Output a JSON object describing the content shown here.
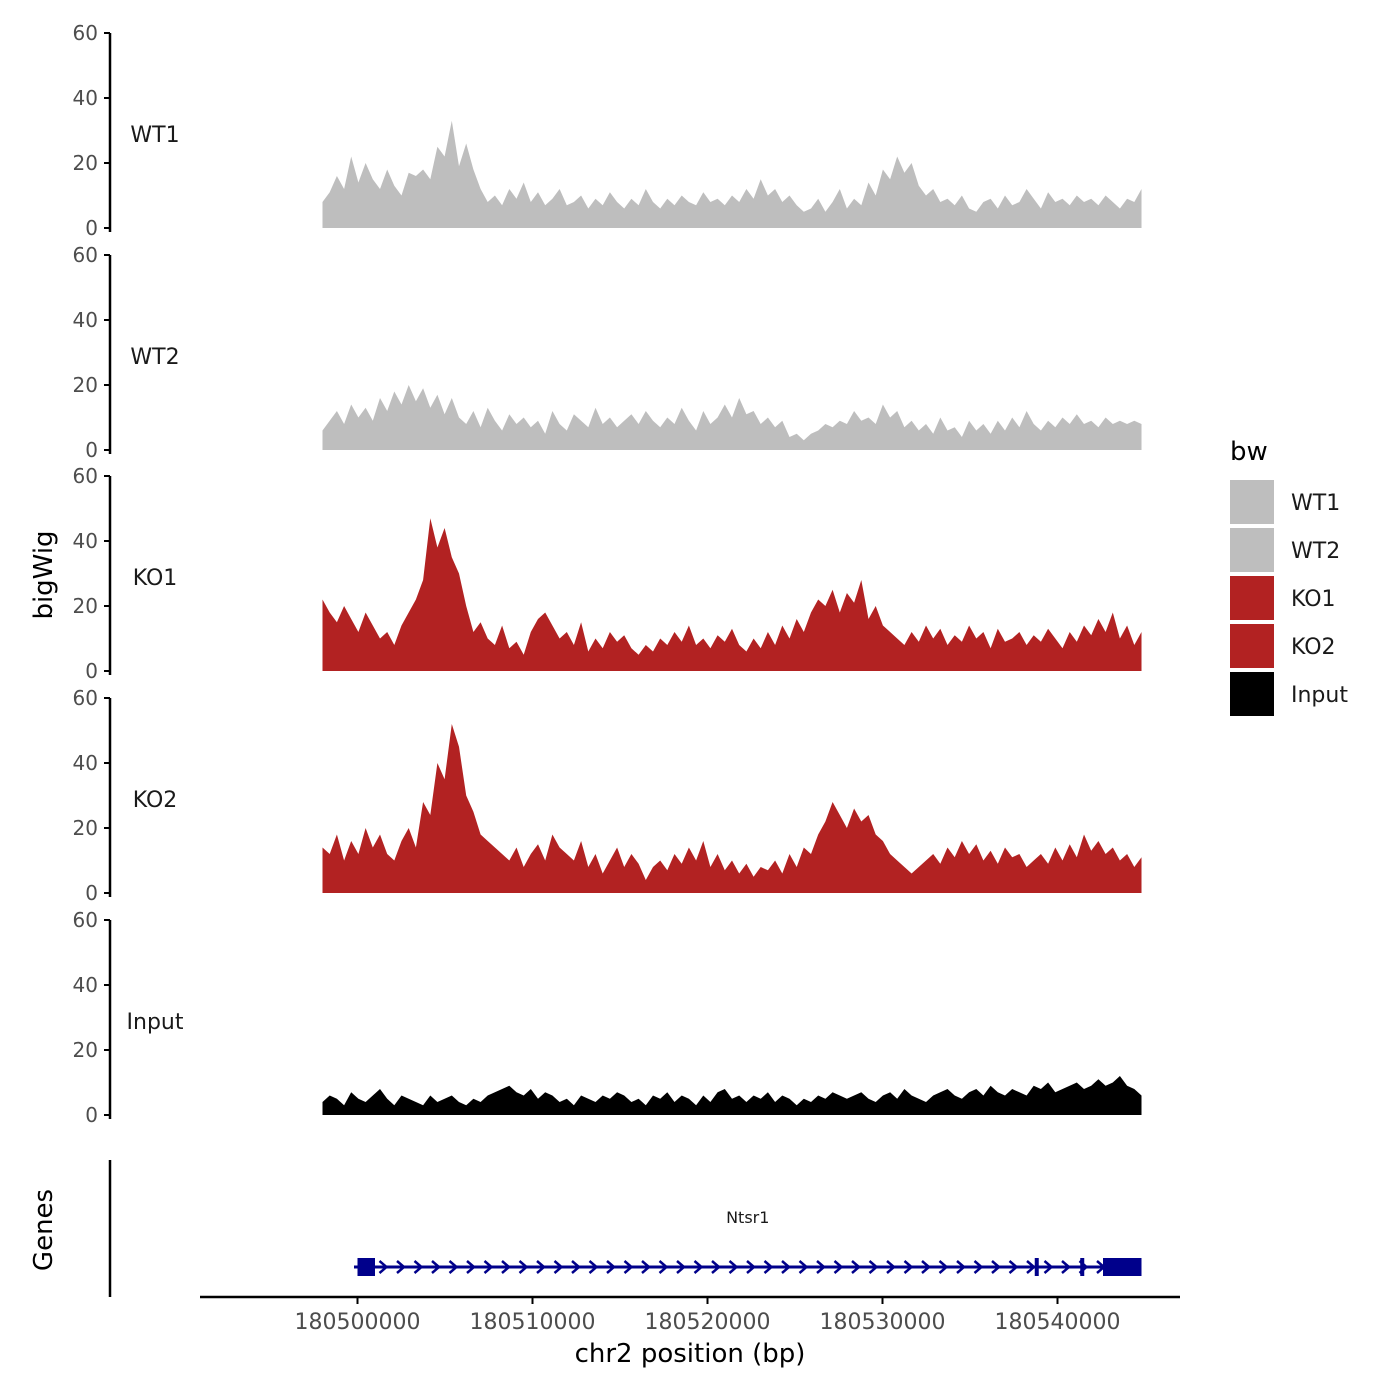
{
  "chart_data": {
    "type": "area",
    "title": "",
    "ylabel": "bigWig",
    "xlabel": "chr2 position (bp)",
    "ylim": [
      0,
      60
    ],
    "yticks": [
      0,
      20,
      40,
      60
    ],
    "xlim": [
      180491000,
      180547000
    ],
    "xticks": [
      180500000,
      180510000,
      180520000,
      180530000,
      180540000
    ],
    "x_start": 180498000,
    "x_end": 180544800,
    "legend": {
      "title": "bw",
      "placement": "right",
      "entries": [
        {
          "label": "WT1",
          "color": "#bebebe"
        },
        {
          "label": "WT2",
          "color": "#bebebe"
        },
        {
          "label": "KO1",
          "color": "#b22222"
        },
        {
          "label": "KO2",
          "color": "#b22222"
        },
        {
          "label": "Input",
          "color": "#000000"
        }
      ]
    },
    "series": [
      {
        "name": "WT1",
        "color": "#bebebe",
        "values": [
          8,
          11,
          16,
          12,
          22,
          14,
          20,
          15,
          12,
          18,
          13,
          10,
          17,
          16,
          18,
          15,
          25,
          22,
          33,
          19,
          26,
          18,
          12,
          8,
          10,
          7,
          12,
          9,
          14,
          8,
          11,
          7,
          9,
          12,
          7,
          8,
          10,
          6,
          9,
          7,
          11,
          8,
          6,
          9,
          7,
          12,
          8,
          6,
          9,
          7,
          10,
          8,
          7,
          11,
          8,
          9,
          7,
          10,
          8,
          12,
          9,
          15,
          10,
          12,
          8,
          10,
          7,
          5,
          6,
          9,
          5,
          8,
          12,
          6,
          9,
          7,
          14,
          10,
          18,
          15,
          22,
          17,
          20,
          13,
          10,
          12,
          8,
          9,
          7,
          10,
          6,
          5,
          8,
          9,
          6,
          10,
          7,
          8,
          12,
          9,
          6,
          11,
          8,
          9,
          7,
          10,
          8,
          9,
          7,
          10,
          8,
          6,
          9,
          8,
          12
        ]
      },
      {
        "name": "WT2",
        "color": "#bebebe",
        "values": [
          6,
          9,
          12,
          8,
          14,
          10,
          13,
          9,
          16,
          12,
          18,
          14,
          20,
          15,
          19,
          13,
          17,
          11,
          16,
          10,
          8,
          12,
          7,
          13,
          9,
          6,
          11,
          8,
          10,
          7,
          9,
          5,
          12,
          8,
          6,
          11,
          9,
          7,
          13,
          8,
          10,
          7,
          9,
          11,
          8,
          12,
          9,
          7,
          10,
          8,
          13,
          9,
          6,
          12,
          8,
          10,
          14,
          10,
          16,
          11,
          12,
          8,
          10,
          7,
          9,
          4,
          5,
          3,
          5,
          6,
          8,
          7,
          9,
          8,
          12,
          9,
          10,
          8,
          14,
          10,
          12,
          7,
          9,
          6,
          8,
          5,
          10,
          6,
          7,
          4,
          9,
          6,
          8,
          5,
          9,
          6,
          10,
          7,
          12,
          8,
          6,
          9,
          7,
          10,
          8,
          11,
          8,
          9,
          7,
          10,
          8,
          9,
          8,
          9,
          8
        ]
      },
      {
        "name": "KO1",
        "color": "#b22222",
        "values": [
          22,
          18,
          15,
          20,
          16,
          12,
          18,
          14,
          10,
          12,
          8,
          14,
          18,
          22,
          28,
          47,
          38,
          44,
          35,
          30,
          20,
          12,
          15,
          10,
          8,
          14,
          7,
          9,
          5,
          12,
          16,
          18,
          14,
          10,
          12,
          8,
          15,
          6,
          10,
          7,
          12,
          9,
          11,
          7,
          5,
          8,
          6,
          10,
          8,
          12,
          9,
          14,
          8,
          10,
          7,
          11,
          9,
          13,
          8,
          6,
          10,
          7,
          12,
          8,
          14,
          10,
          16,
          12,
          18,
          22,
          20,
          25,
          18,
          24,
          21,
          28,
          16,
          20,
          14,
          12,
          10,
          8,
          12,
          9,
          14,
          10,
          13,
          8,
          11,
          9,
          14,
          10,
          12,
          7,
          13,
          9,
          10,
          12,
          8,
          11,
          9,
          13,
          10,
          7,
          12,
          9,
          14,
          11,
          16,
          12,
          18,
          10,
          14,
          8,
          12
        ]
      },
      {
        "name": "KO2",
        "color": "#b22222",
        "values": [
          14,
          12,
          18,
          10,
          16,
          12,
          20,
          14,
          18,
          12,
          10,
          16,
          20,
          14,
          28,
          24,
          40,
          35,
          52,
          45,
          30,
          25,
          18,
          16,
          14,
          12,
          10,
          14,
          8,
          12,
          15,
          10,
          18,
          14,
          12,
          10,
          16,
          8,
          12,
          6,
          10,
          14,
          8,
          12,
          9,
          4,
          8,
          10,
          7,
          12,
          9,
          14,
          10,
          16,
          8,
          12,
          7,
          10,
          6,
          9,
          5,
          8,
          7,
          10,
          6,
          12,
          8,
          14,
          12,
          18,
          22,
          28,
          24,
          20,
          26,
          22,
          24,
          18,
          16,
          12,
          10,
          8,
          6,
          8,
          10,
          12,
          9,
          14,
          11,
          16,
          12,
          15,
          10,
          13,
          9,
          14,
          11,
          12,
          8,
          10,
          12,
          9,
          14,
          10,
          15,
          11,
          18,
          13,
          16,
          12,
          14,
          10,
          12,
          8,
          11
        ]
      },
      {
        "name": "Input",
        "color": "#000000",
        "values": [
          4,
          6,
          5,
          3,
          7,
          5,
          4,
          6,
          8,
          5,
          3,
          6,
          5,
          4,
          3,
          6,
          4,
          5,
          6,
          4,
          3,
          5,
          4,
          6,
          7,
          8,
          9,
          7,
          6,
          8,
          5,
          7,
          6,
          4,
          5,
          3,
          6,
          5,
          4,
          6,
          5,
          7,
          6,
          4,
          5,
          3,
          6,
          5,
          7,
          4,
          6,
          5,
          3,
          6,
          4,
          7,
          8,
          5,
          6,
          4,
          6,
          5,
          7,
          4,
          6,
          5,
          3,
          5,
          4,
          6,
          5,
          7,
          6,
          5,
          6,
          7,
          5,
          4,
          6,
          7,
          5,
          8,
          6,
          5,
          4,
          6,
          7,
          8,
          6,
          5,
          7,
          8,
          6,
          9,
          7,
          6,
          8,
          7,
          6,
          9,
          8,
          10,
          7,
          8,
          9,
          10,
          8,
          9,
          11,
          9,
          10,
          12,
          9,
          8,
          6
        ]
      }
    ],
    "gene_track": {
      "label": "Genes",
      "gene_name": "Ntsr1",
      "start": 180499800,
      "end": 180544800,
      "strand": "+",
      "exons": [
        [
          180500000,
          180501000
        ],
        [
          180538700,
          180538900
        ],
        [
          180541300,
          180541400
        ],
        [
          180542600,
          180544800
        ]
      ]
    }
  }
}
